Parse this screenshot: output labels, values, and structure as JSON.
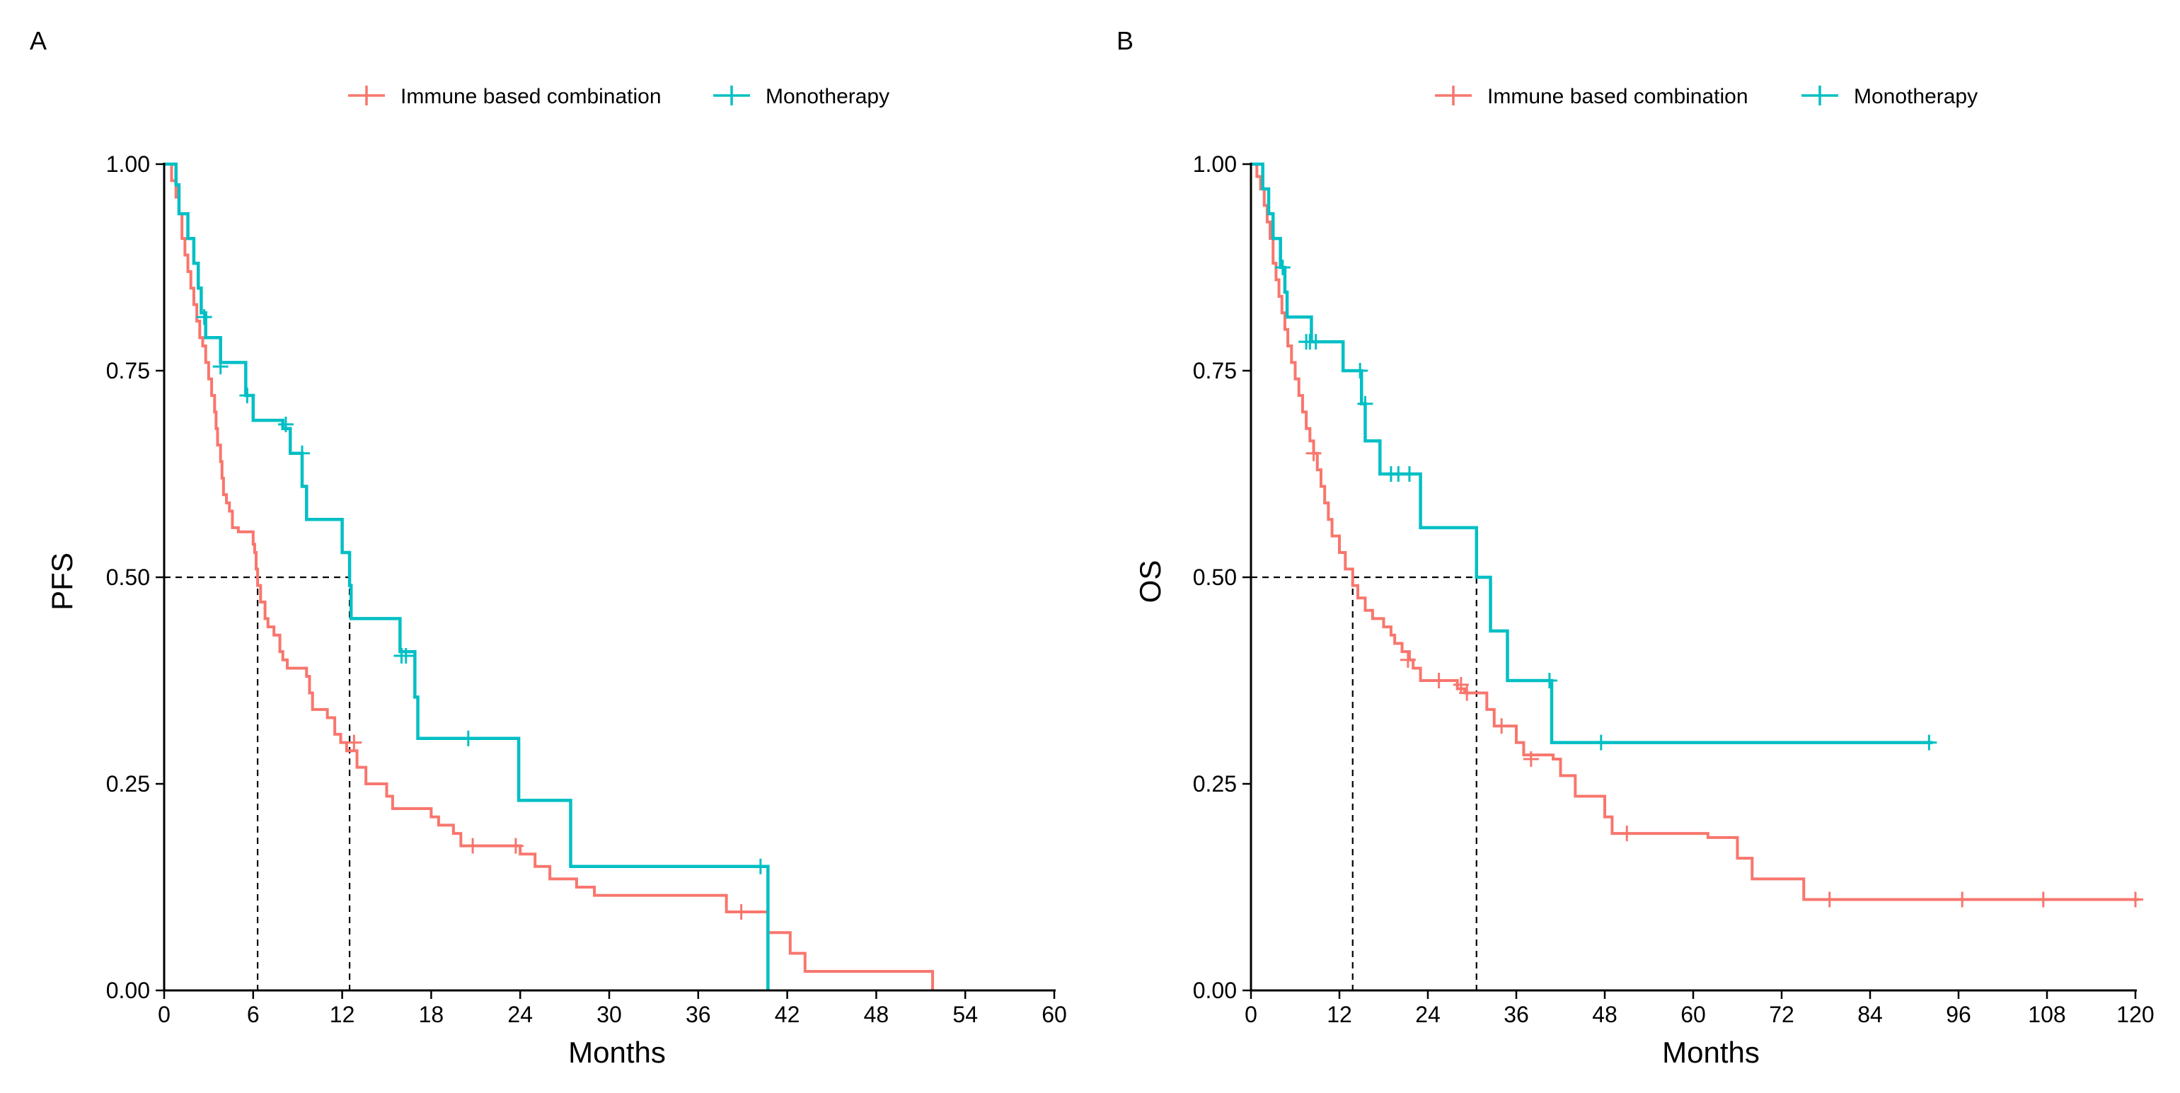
{
  "colors": {
    "combination": "#F8766D",
    "monotherapy": "#00BFC4",
    "axis": "#000000",
    "guide": "#000000"
  },
  "chart_data": [
    {
      "type": "line",
      "subtype": "kaplan-meier",
      "panel_label": "A",
      "xlabel": "Months",
      "ylabel": "PFS",
      "xlim": [
        0,
        60
      ],
      "ylim": [
        0,
        1
      ],
      "xticks": [
        0,
        6,
        12,
        18,
        24,
        30,
        36,
        42,
        48,
        54,
        60
      ],
      "yticks": [
        0,
        0.25,
        0.5,
        0.75,
        1
      ],
      "ytick_labels": [
        "0.00",
        "0.25",
        "0.50",
        "0.75",
        "1.00"
      ],
      "legend_position": "top",
      "grid": false,
      "median_guides": {
        "y": 0.5,
        "x": [
          6.3,
          12.5
        ]
      },
      "series": [
        {
          "name": "Immune based combination",
          "color_key": "combination",
          "steps": [
            [
              0,
              1.0
            ],
            [
              0.5,
              0.98
            ],
            [
              0.8,
              0.96
            ],
            [
              1.0,
              0.94
            ],
            [
              1.2,
              0.91
            ],
            [
              1.4,
              0.89
            ],
            [
              1.6,
              0.87
            ],
            [
              1.8,
              0.85
            ],
            [
              2.0,
              0.83
            ],
            [
              2.2,
              0.81
            ],
            [
              2.4,
              0.79
            ],
            [
              2.6,
              0.78
            ],
            [
              2.8,
              0.76
            ],
            [
              3.0,
              0.74
            ],
            [
              3.2,
              0.72
            ],
            [
              3.4,
              0.7
            ],
            [
              3.5,
              0.68
            ],
            [
              3.6,
              0.66
            ],
            [
              3.8,
              0.64
            ],
            [
              3.9,
              0.62
            ],
            [
              4.0,
              0.6
            ],
            [
              4.2,
              0.59
            ],
            [
              4.4,
              0.58
            ],
            [
              4.6,
              0.56
            ],
            [
              5.0,
              0.555
            ],
            [
              6.0,
              0.54
            ],
            [
              6.1,
              0.53
            ],
            [
              6.2,
              0.51
            ],
            [
              6.3,
              0.49
            ],
            [
              6.5,
              0.47
            ],
            [
              6.8,
              0.45
            ],
            [
              7.0,
              0.44
            ],
            [
              7.4,
              0.43
            ],
            [
              7.8,
              0.41
            ],
            [
              8.0,
              0.4
            ],
            [
              8.3,
              0.39
            ],
            [
              9.6,
              0.38
            ],
            [
              9.8,
              0.36
            ],
            [
              10.0,
              0.34
            ],
            [
              11.0,
              0.33
            ],
            [
              11.5,
              0.31
            ],
            [
              11.9,
              0.3
            ],
            [
              12.3,
              0.29
            ],
            [
              13.0,
              0.27
            ],
            [
              13.6,
              0.25
            ],
            [
              15.0,
              0.235
            ],
            [
              15.4,
              0.22
            ],
            [
              18.0,
              0.21
            ],
            [
              18.5,
              0.2
            ],
            [
              19.5,
              0.19
            ],
            [
              20.0,
              0.175
            ],
            [
              24.0,
              0.165
            ],
            [
              25.0,
              0.15
            ],
            [
              26.0,
              0.135
            ],
            [
              27.8,
              0.125
            ],
            [
              29.0,
              0.115
            ],
            [
              37.9,
              0.095
            ],
            [
              40.7,
              0.07
            ],
            [
              42.2,
              0.045
            ],
            [
              43.2,
              0.023
            ],
            [
              51.8,
              0.0
            ]
          ],
          "end_x": 51.8,
          "censored": [
            [
              12.8,
              0.3
            ],
            [
              20.8,
              0.175
            ],
            [
              23.7,
              0.175
            ],
            [
              38.9,
              0.095
            ]
          ]
        },
        {
          "name": "Monotherapy",
          "color_key": "monotherapy",
          "steps": [
            [
              0,
              1.0
            ],
            [
              0.8,
              0.975
            ],
            [
              1.0,
              0.94
            ],
            [
              1.6,
              0.91
            ],
            [
              2.0,
              0.88
            ],
            [
              2.3,
              0.85
            ],
            [
              2.5,
              0.82
            ],
            [
              2.8,
              0.79
            ],
            [
              3.8,
              0.76
            ],
            [
              5.5,
              0.72
            ],
            [
              6.0,
              0.69
            ],
            [
              8.0,
              0.68
            ],
            [
              8.5,
              0.65
            ],
            [
              9.3,
              0.61
            ],
            [
              9.6,
              0.57
            ],
            [
              12.0,
              0.53
            ],
            [
              12.5,
              0.49
            ],
            [
              12.6,
              0.45
            ],
            [
              15.9,
              0.41
            ],
            [
              16.9,
              0.355
            ],
            [
              17.1,
              0.305
            ],
            [
              23.9,
              0.23
            ],
            [
              27.4,
              0.15
            ],
            [
              40.7,
              0.0
            ]
          ],
          "end_x": 40.7,
          "censored": [
            [
              2.7,
              0.815
            ],
            [
              3.8,
              0.755
            ],
            [
              5.6,
              0.72
            ],
            [
              8.2,
              0.685
            ],
            [
              9.3,
              0.65
            ],
            [
              16.0,
              0.405
            ],
            [
              16.3,
              0.405
            ],
            [
              20.5,
              0.305
            ],
            [
              40.2,
              0.15
            ]
          ]
        }
      ]
    },
    {
      "type": "line",
      "subtype": "kaplan-meier",
      "panel_label": "B",
      "xlabel": "Months",
      "ylabel": "OS",
      "xlim": [
        0,
        120
      ],
      "ylim": [
        0,
        1
      ],
      "xticks": [
        0,
        12,
        24,
        36,
        48,
        60,
        72,
        84,
        96,
        108,
        120
      ],
      "yticks": [
        0,
        0.25,
        0.5,
        0.75,
        1
      ],
      "ytick_labels": [
        "0.00",
        "0.25",
        "0.50",
        "0.75",
        "1.00"
      ],
      "legend_position": "top",
      "grid": false,
      "median_guides": {
        "y": 0.5,
        "x": [
          13.8,
          30.6
        ]
      },
      "series": [
        {
          "name": "Immune based combination",
          "color_key": "combination",
          "steps": [
            [
              0,
              1.0
            ],
            [
              0.8,
              0.985
            ],
            [
              1.3,
              0.97
            ],
            [
              1.8,
              0.95
            ],
            [
              2.2,
              0.93
            ],
            [
              2.6,
              0.91
            ],
            [
              3.0,
              0.88
            ],
            [
              3.4,
              0.86
            ],
            [
              3.8,
              0.84
            ],
            [
              4.2,
              0.82
            ],
            [
              4.6,
              0.8
            ],
            [
              5.0,
              0.78
            ],
            [
              5.5,
              0.76
            ],
            [
              6.0,
              0.74
            ],
            [
              6.5,
              0.72
            ],
            [
              7.0,
              0.7
            ],
            [
              7.5,
              0.68
            ],
            [
              8.0,
              0.665
            ],
            [
              8.5,
              0.65
            ],
            [
              9.0,
              0.63
            ],
            [
              9.5,
              0.61
            ],
            [
              10.0,
              0.59
            ],
            [
              10.5,
              0.57
            ],
            [
              11.0,
              0.55
            ],
            [
              12.0,
              0.53
            ],
            [
              12.8,
              0.51
            ],
            [
              13.8,
              0.49
            ],
            [
              14.5,
              0.475
            ],
            [
              15.5,
              0.46
            ],
            [
              16.5,
              0.45
            ],
            [
              18.0,
              0.44
            ],
            [
              19.0,
              0.43
            ],
            [
              19.5,
              0.42
            ],
            [
              20.5,
              0.41
            ],
            [
              21.5,
              0.4
            ],
            [
              22.0,
              0.39
            ],
            [
              23.0,
              0.375
            ],
            [
              28.0,
              0.365
            ],
            [
              29.0,
              0.36
            ],
            [
              32.0,
              0.34
            ],
            [
              33.0,
              0.32
            ],
            [
              36.0,
              0.3
            ],
            [
              37.0,
              0.285
            ],
            [
              41.0,
              0.28
            ],
            [
              42.0,
              0.26
            ],
            [
              44.0,
              0.235
            ],
            [
              48.0,
              0.21
            ],
            [
              49.0,
              0.19
            ],
            [
              62.0,
              0.185
            ],
            [
              66.0,
              0.16
            ],
            [
              68.0,
              0.135
            ],
            [
              75.0,
              0.11
            ]
          ],
          "end_x": 120.5,
          "censored": [
            [
              8.5,
              0.65
            ],
            [
              21.3,
              0.4
            ],
            [
              25.5,
              0.375
            ],
            [
              28.5,
              0.37
            ],
            [
              29.3,
              0.36
            ],
            [
              34.0,
              0.32
            ],
            [
              38.0,
              0.28
            ],
            [
              51.0,
              0.19
            ],
            [
              78.5,
              0.11
            ],
            [
              96.5,
              0.11
            ],
            [
              107.5,
              0.11
            ],
            [
              120.0,
              0.11
            ]
          ]
        },
        {
          "name": "Monotherapy",
          "color_key": "monotherapy",
          "steps": [
            [
              0,
              1.0
            ],
            [
              1.6,
              0.97
            ],
            [
              2.4,
              0.94
            ],
            [
              3.0,
              0.91
            ],
            [
              4.0,
              0.875
            ],
            [
              4.6,
              0.845
            ],
            [
              4.9,
              0.815
            ],
            [
              8.2,
              0.785
            ],
            [
              12.5,
              0.75
            ],
            [
              15.0,
              0.71
            ],
            [
              15.5,
              0.665
            ],
            [
              17.5,
              0.625
            ],
            [
              23.0,
              0.56
            ],
            [
              30.6,
              0.5
            ],
            [
              32.5,
              0.435
            ],
            [
              34.8,
              0.375
            ],
            [
              40.8,
              0.3
            ]
          ],
          "end_x": 92.5,
          "censored": [
            [
              4.3,
              0.875
            ],
            [
              7.5,
              0.785
            ],
            [
              8.0,
              0.785
            ],
            [
              8.8,
              0.785
            ],
            [
              14.8,
              0.75
            ],
            [
              15.5,
              0.71
            ],
            [
              19.0,
              0.625
            ],
            [
              20.0,
              0.625
            ],
            [
              21.5,
              0.625
            ],
            [
              40.5,
              0.375
            ],
            [
              47.5,
              0.3
            ],
            [
              92.0,
              0.3
            ]
          ]
        }
      ]
    }
  ]
}
